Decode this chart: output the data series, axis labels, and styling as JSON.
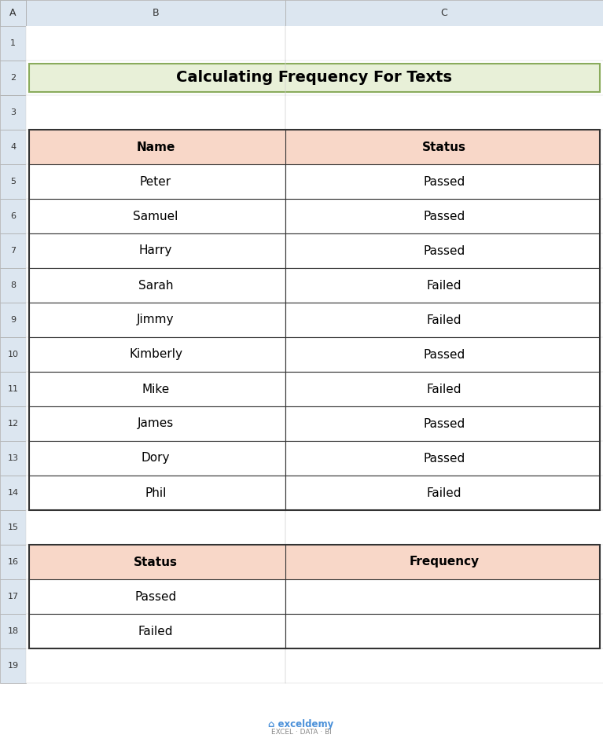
{
  "title": "Calculating Frequency For Texts",
  "title_bg": "#e8f0d8",
  "title_border": "#8aab5c",
  "header_bg": "#f8d7c8",
  "cell_bg": "#ffffff",
  "border_color": "#000000",
  "col_headers": [
    "A",
    "B",
    "C"
  ],
  "table1_headers": [
    "Name",
    "Status"
  ],
  "table1_data": [
    [
      "Peter",
      "Passed"
    ],
    [
      "Samuel",
      "Passed"
    ],
    [
      "Harry",
      "Passed"
    ],
    [
      "Sarah",
      "Failed"
    ],
    [
      "Jimmy",
      "Failed"
    ],
    [
      "Kimberly",
      "Passed"
    ],
    [
      "Mike",
      "Failed"
    ],
    [
      "James",
      "Passed"
    ],
    [
      "Dory",
      "Passed"
    ],
    [
      "Phil",
      "Failed"
    ]
  ],
  "table2_headers": [
    "Status",
    "Frequency"
  ],
  "table2_data": [
    [
      "Passed",
      ""
    ],
    [
      "Failed",
      ""
    ]
  ],
  "outer_bg": "#f0f0f0",
  "spreadsheet_bg": "#ffffff",
  "header_row_bg": "#dce6f0",
  "text_color": "#000000",
  "watermark_text": "exceldemy",
  "watermark_sub": "EXCEL · DATA · BI",
  "watermark_color": "#4a90d9",
  "watermark_sub_color": "#888888"
}
